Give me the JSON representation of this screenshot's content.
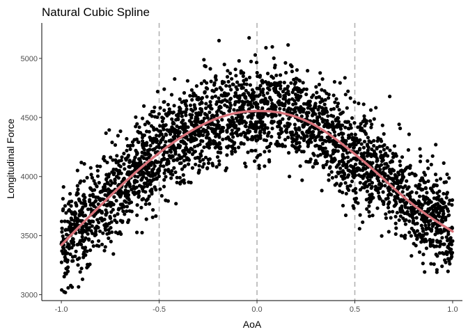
{
  "chart_data": {
    "type": "scatter",
    "title": "Natural Cubic Spline",
    "xlabel": "AoA",
    "ylabel": "Longitudinal Force",
    "xlim": [
      -1.1,
      1.05
    ],
    "ylim": [
      2950,
      5300
    ],
    "x_ticks": [
      -1.0,
      -0.5,
      0.0,
      0.5,
      1.0
    ],
    "x_tick_labels": [
      "-1.0",
      "-0.5",
      "0.0",
      "0.5",
      "1.0"
    ],
    "y_ticks": [
      3000,
      3500,
      4000,
      4500,
      5000
    ],
    "y_tick_labels": [
      "3000",
      "3500",
      "4000",
      "4500",
      "5000"
    ],
    "grid": false,
    "point_color": "#000000",
    "spline_color": "#d9727a",
    "knot_line_color": "#b3b3b3",
    "knots": [
      -0.5,
      0.0,
      0.5
    ],
    "spline_fit": {
      "x": [
        -1.0,
        -0.9,
        -0.8,
        -0.7,
        -0.6,
        -0.5,
        -0.4,
        -0.3,
        -0.2,
        -0.1,
        0.0,
        0.1,
        0.2,
        0.3,
        0.4,
        0.5,
        0.6,
        0.7,
        0.8,
        0.9,
        1.0
      ],
      "y": [
        3420,
        3590,
        3755,
        3915,
        4065,
        4200,
        4320,
        4420,
        4495,
        4540,
        4555,
        4545,
        4505,
        4430,
        4320,
        4190,
        4050,
        3900,
        3760,
        3640,
        3535
      ]
    },
    "scatter_summary": {
      "n_points": 3000,
      "x_range": [
        -1.0,
        1.0
      ],
      "y_range": [
        3010,
        5200
      ]
    }
  }
}
